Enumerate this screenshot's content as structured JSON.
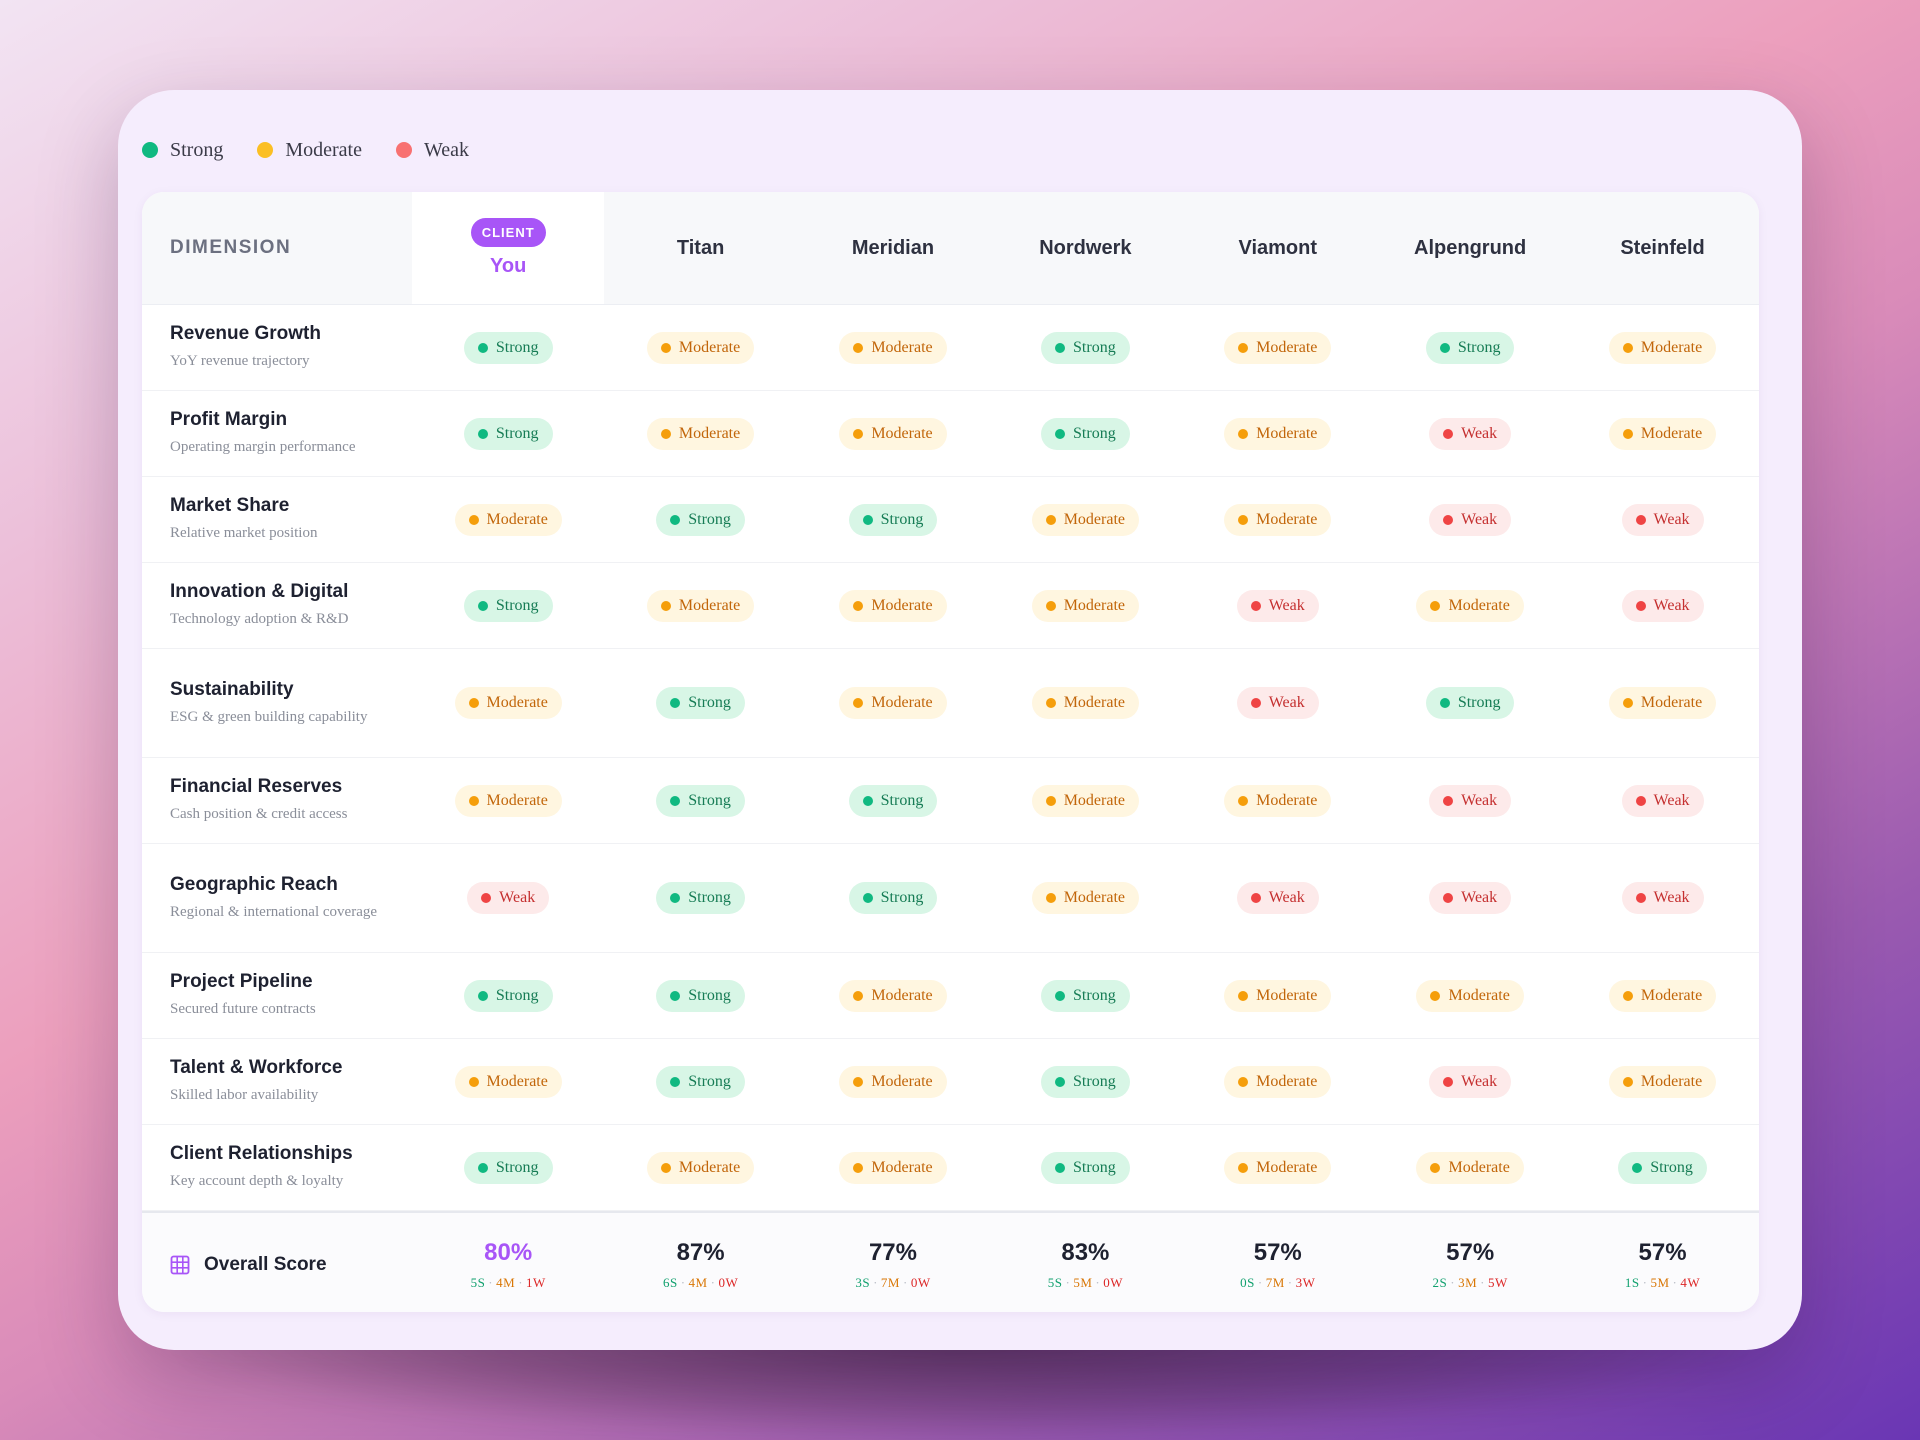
{
  "legend": [
    {
      "label": "Strong",
      "color": "#10b981"
    },
    {
      "label": "Moderate",
      "color": "#fbbf24"
    },
    {
      "label": "Weak",
      "color": "#f87171"
    }
  ],
  "header": {
    "dimension_label": "DIMENSION",
    "client_badge": "CLIENT",
    "client_name": "You",
    "competitors": [
      "Titan",
      "Meridian",
      "Nordwerk",
      "Viamont",
      "Alpengrund",
      "Steinfeld"
    ]
  },
  "rating_labels": {
    "S": "Strong",
    "M": "Moderate",
    "W": "Weak"
  },
  "rows": [
    {
      "name": "Revenue Growth",
      "desc": "YoY revenue trajectory",
      "ratings": [
        "S",
        "M",
        "M",
        "S",
        "M",
        "S",
        "M"
      ]
    },
    {
      "name": "Profit Margin",
      "desc": "Operating margin performance",
      "ratings": [
        "S",
        "M",
        "M",
        "S",
        "M",
        "W",
        "M"
      ]
    },
    {
      "name": "Market Share",
      "desc": "Relative market position",
      "ratings": [
        "M",
        "S",
        "S",
        "M",
        "M",
        "W",
        "W"
      ]
    },
    {
      "name": "Innovation & Digital",
      "desc": "Technology adoption & R&D",
      "ratings": [
        "S",
        "M",
        "M",
        "M",
        "W",
        "M",
        "W"
      ]
    },
    {
      "name": "Sustainability",
      "desc": "ESG & green building capability",
      "ratings": [
        "M",
        "S",
        "M",
        "M",
        "W",
        "S",
        "M"
      ]
    },
    {
      "name": "Financial Reserves",
      "desc": "Cash position & credit access",
      "ratings": [
        "M",
        "S",
        "S",
        "M",
        "M",
        "W",
        "W"
      ]
    },
    {
      "name": "Geographic Reach",
      "desc": "Regional & international coverage",
      "ratings": [
        "W",
        "S",
        "S",
        "M",
        "W",
        "W",
        "W"
      ]
    },
    {
      "name": "Project Pipeline",
      "desc": "Secured future contracts",
      "ratings": [
        "S",
        "S",
        "M",
        "S",
        "M",
        "M",
        "M"
      ]
    },
    {
      "name": "Talent & Workforce",
      "desc": "Skilled labor availability",
      "ratings": [
        "M",
        "S",
        "M",
        "S",
        "M",
        "W",
        "M"
      ]
    },
    {
      "name": "Client Relationships",
      "desc": "Key account depth & loyalty",
      "ratings": [
        "S",
        "M",
        "M",
        "S",
        "M",
        "M",
        "S"
      ]
    }
  ],
  "footer": {
    "label": "Overall Score",
    "icon": "grid-icon",
    "separator": "·",
    "scores": [
      {
        "score": "80%",
        "s": "5S",
        "m": "4M",
        "w": "1W"
      },
      {
        "score": "87%",
        "s": "6S",
        "m": "4M",
        "w": "0W"
      },
      {
        "score": "77%",
        "s": "3S",
        "m": "7M",
        "w": "0W"
      },
      {
        "score": "83%",
        "s": "5S",
        "m": "5M",
        "w": "0W"
      },
      {
        "score": "57%",
        "s": "0S",
        "m": "7M",
        "w": "3W"
      },
      {
        "score": "57%",
        "s": "2S",
        "m": "3M",
        "w": "5W"
      },
      {
        "score": "57%",
        "s": "1S",
        "m": "5M",
        "w": "4W"
      }
    ]
  },
  "colors": {
    "accent": "#a855f7",
    "strong": "#10b981",
    "moderate": "#f59e0b",
    "weak": "#ef4444"
  }
}
